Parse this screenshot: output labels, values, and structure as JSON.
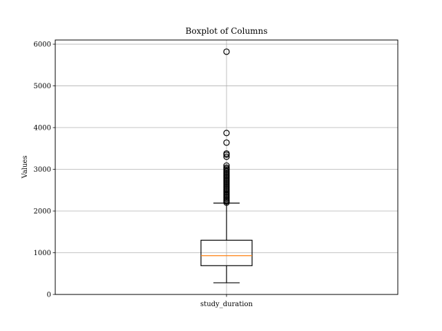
{
  "chart_data": {
    "type": "box",
    "title": "Boxplot of Columns",
    "xlabel": "",
    "ylabel": "Values",
    "categories": [
      "study_duration"
    ],
    "ylim": [
      0,
      6100
    ],
    "yticks": [
      0,
      1000,
      2000,
      3000,
      4000,
      5000,
      6000
    ],
    "grid": true,
    "boxes": [
      {
        "label": "study_duration",
        "whisker_low": 280,
        "q1": 690,
        "median": 930,
        "q3": 1300,
        "whisker_high": 2190,
        "outliers": [
          2200,
          2230,
          2260,
          2290,
          2320,
          2350,
          2380,
          2410,
          2440,
          2470,
          2500,
          2530,
          2560,
          2590,
          2620,
          2650,
          2680,
          2710,
          2740,
          2770,
          2800,
          2830,
          2860,
          2890,
          2920,
          2950,
          2980,
          3010,
          3040,
          3090,
          3300,
          3350,
          3380,
          3640,
          3870,
          5820
        ]
      }
    ],
    "colors": {
      "box": "#000000",
      "median": "#ff7f0e",
      "grid": "#b0b0b0",
      "flier_edge": "#000000"
    }
  }
}
